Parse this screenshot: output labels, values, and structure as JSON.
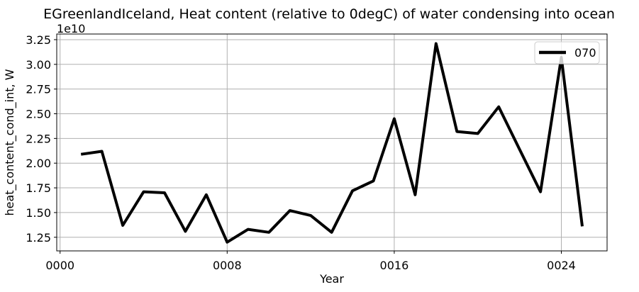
{
  "figure": {
    "background_color": "#ffffff",
    "line_color": "#000000",
    "grid_color": "#b0b0b0",
    "spine_color": "#000000",
    "legend_border_color": "#cccccc"
  },
  "chart_data": {
    "type": "line",
    "title": "EGreenlandIceland, Heat content (relative to 0degC) of water condensing into ocean",
    "xlabel": "Year",
    "ylabel": "heat_content_cond_int, W",
    "offset_text": "1e10",
    "grid": true,
    "legend": {
      "location": "upper right",
      "entries": [
        "070"
      ]
    },
    "x": [
      1,
      2,
      3,
      4,
      5,
      6,
      7,
      8,
      9,
      10,
      11,
      12,
      13,
      14,
      15,
      16,
      17,
      18,
      19,
      20,
      21,
      22,
      23,
      24,
      25
    ],
    "series": [
      {
        "name": "070",
        "color": "#000000",
        "values_1e10_W": [
          2.09,
          2.12,
          1.37,
          1.71,
          1.7,
          1.31,
          1.68,
          1.2,
          1.33,
          1.3,
          1.52,
          1.47,
          1.3,
          1.72,
          1.82,
          2.45,
          1.68,
          3.21,
          2.32,
          2.3,
          2.57,
          2.14,
          1.71,
          3.07,
          1.36
        ]
      }
    ],
    "xticks": {
      "values": [
        0,
        8,
        16,
        24
      ],
      "labels": [
        "0000",
        "0008",
        "0016",
        "0024"
      ]
    },
    "yticks": {
      "values": [
        1.25,
        1.5,
        1.75,
        2.0,
        2.25,
        2.5,
        2.75,
        3.0,
        3.25
      ],
      "labels": [
        "1.25",
        "1.50",
        "1.75",
        "2.00",
        "2.25",
        "2.50",
        "2.75",
        "3.00",
        "3.25"
      ]
    },
    "xlim": [
      -0.16,
      26.19
    ],
    "ylim": [
      1.112,
      3.307
    ]
  }
}
